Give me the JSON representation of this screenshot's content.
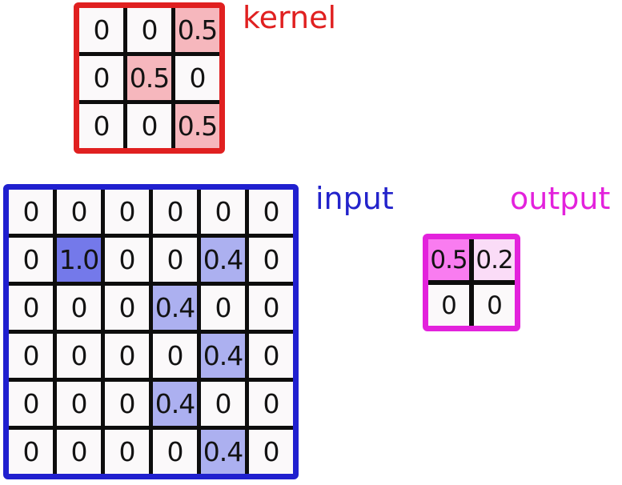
{
  "kernel": {
    "label": "kernel",
    "cells": [
      {
        "v": "0",
        "bg": "plain"
      },
      {
        "v": "0",
        "bg": "plain"
      },
      {
        "v": "0.5",
        "bg": "red-hl"
      },
      {
        "v": "0",
        "bg": "plain"
      },
      {
        "v": "0.5",
        "bg": "red-hl"
      },
      {
        "v": "0",
        "bg": "plain"
      },
      {
        "v": "0",
        "bg": "plain"
      },
      {
        "v": "0",
        "bg": "plain"
      },
      {
        "v": "0.5",
        "bg": "red-hl"
      }
    ]
  },
  "input": {
    "label": "input",
    "cells": [
      {
        "v": "0",
        "bg": "plain"
      },
      {
        "v": "0",
        "bg": "plain"
      },
      {
        "v": "0",
        "bg": "plain"
      },
      {
        "v": "0",
        "bg": "plain"
      },
      {
        "v": "0",
        "bg": "plain"
      },
      {
        "v": "0",
        "bg": "plain"
      },
      {
        "v": "0",
        "bg": "plain"
      },
      {
        "v": "1.0",
        "bg": "blue-strong"
      },
      {
        "v": "0",
        "bg": "plain"
      },
      {
        "v": "0",
        "bg": "plain"
      },
      {
        "v": "0.4",
        "bg": "blue-light"
      },
      {
        "v": "0",
        "bg": "plain"
      },
      {
        "v": "0",
        "bg": "plain"
      },
      {
        "v": "0",
        "bg": "plain"
      },
      {
        "v": "0",
        "bg": "plain"
      },
      {
        "v": "0.4",
        "bg": "blue-light"
      },
      {
        "v": "0",
        "bg": "plain"
      },
      {
        "v": "0",
        "bg": "plain"
      },
      {
        "v": "0",
        "bg": "plain"
      },
      {
        "v": "0",
        "bg": "plain"
      },
      {
        "v": "0",
        "bg": "plain"
      },
      {
        "v": "0",
        "bg": "plain"
      },
      {
        "v": "0.4",
        "bg": "blue-light"
      },
      {
        "v": "0",
        "bg": "plain"
      },
      {
        "v": "0",
        "bg": "plain"
      },
      {
        "v": "0",
        "bg": "plain"
      },
      {
        "v": "0",
        "bg": "plain"
      },
      {
        "v": "0.4",
        "bg": "blue-light"
      },
      {
        "v": "0",
        "bg": "plain"
      },
      {
        "v": "0",
        "bg": "plain"
      },
      {
        "v": "0",
        "bg": "plain"
      },
      {
        "v": "0",
        "bg": "plain"
      },
      {
        "v": "0",
        "bg": "plain"
      },
      {
        "v": "0",
        "bg": "plain"
      },
      {
        "v": "0.4",
        "bg": "blue-light"
      },
      {
        "v": "0",
        "bg": "plain"
      }
    ]
  },
  "output": {
    "label": "output",
    "cells": [
      {
        "v": "0.5",
        "bg": "magenta-strong"
      },
      {
        "v": "0.2",
        "bg": "magenta-light"
      },
      {
        "v": "0",
        "bg": "plain"
      },
      {
        "v": "0",
        "bg": "plain"
      }
    ]
  },
  "colors": {
    "kernel_border": "#e02020",
    "kernel_label": "#e02020",
    "kernel_highlight": "#f6b7bd",
    "input_border": "#2020cf",
    "input_label": "#2323cb",
    "input_highlight_strong": "#7479ea",
    "input_highlight_light": "#acb0f0",
    "output_border": "#e322dc",
    "output_label": "#e322dc",
    "output_highlight_strong": "#f97cf0",
    "output_highlight_light": "#fadcf7",
    "cell_background": "#fbf9fa",
    "grid_lines": "#0d0d0d",
    "number_text": "#131313"
  }
}
